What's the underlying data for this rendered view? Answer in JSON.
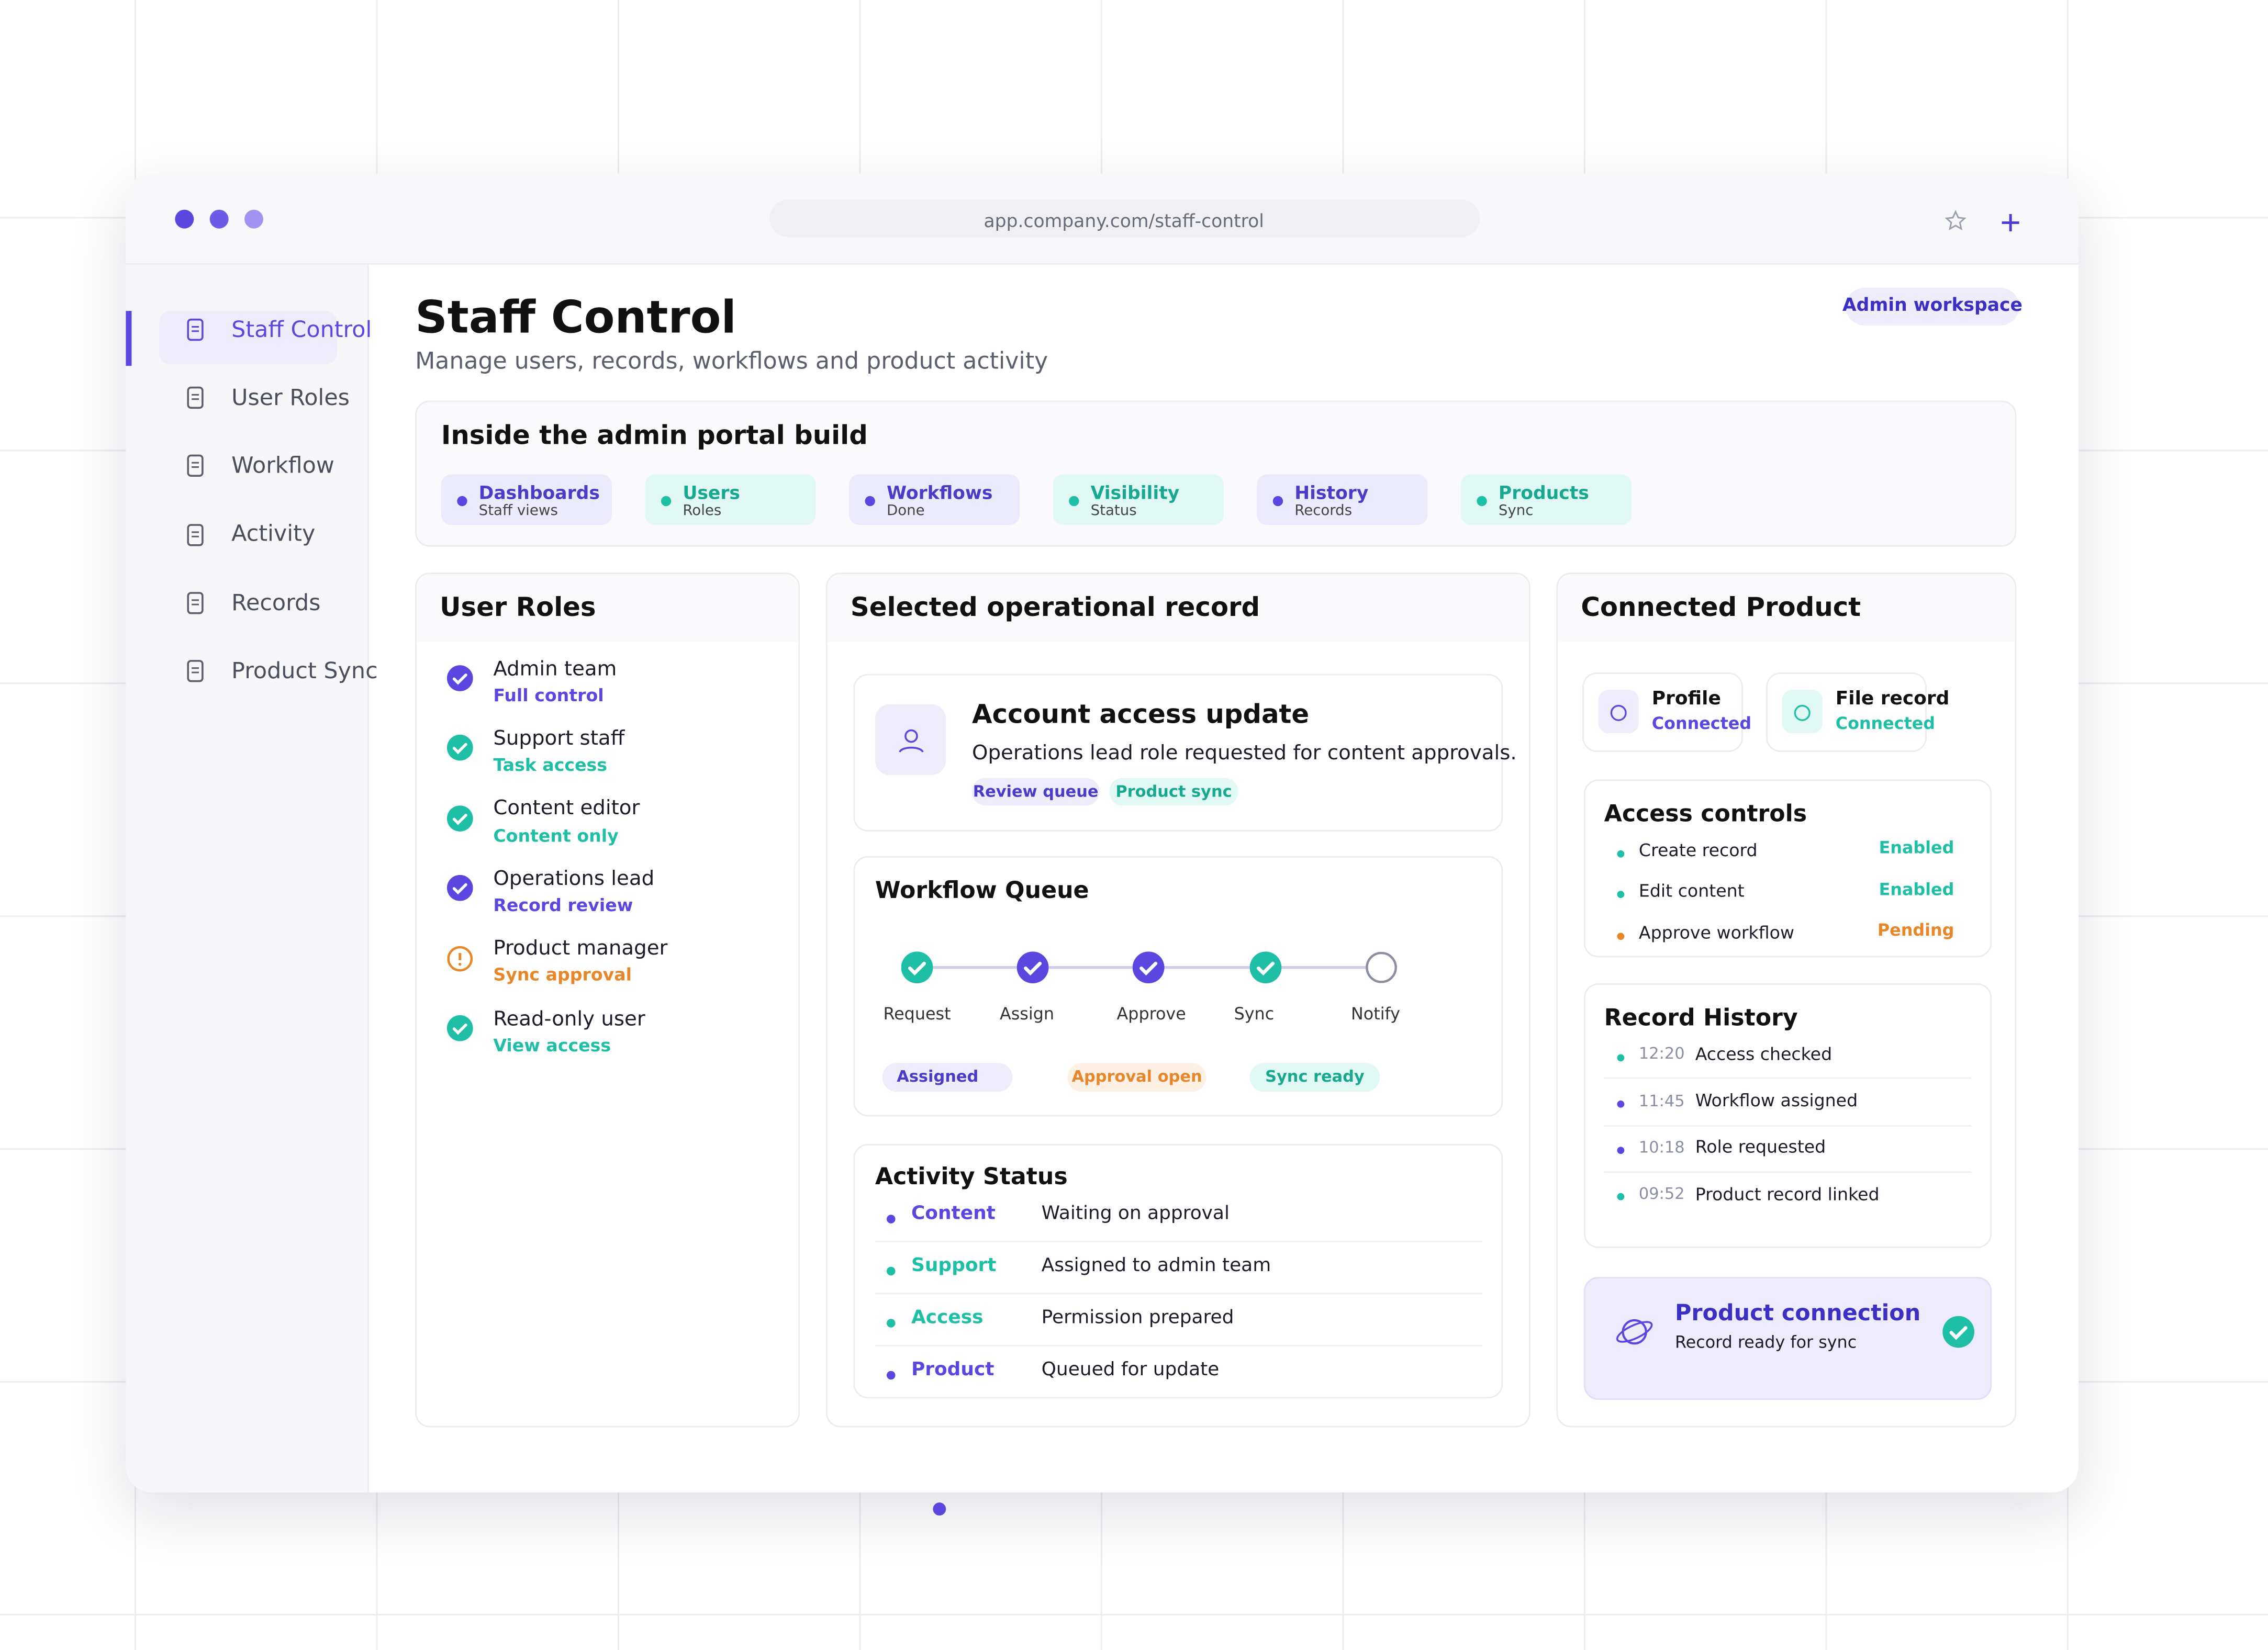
{
  "browser": {
    "url": "app.company.com/staff-control"
  },
  "sidebar": {
    "items": [
      "Staff Control",
      "User Roles",
      "Workflow",
      "Activity",
      "Records",
      "Product Sync"
    ]
  },
  "header": {
    "title": "Staff Control",
    "subtitle": "Manage users, records, workflows and product activity",
    "badge": "Admin workspace"
  },
  "build": {
    "title": "Inside the admin portal build",
    "chips": [
      {
        "label": "Dashboards",
        "sub": "Staff views"
      },
      {
        "label": "Users",
        "sub": "Roles"
      },
      {
        "label": "Workflows",
        "sub": "Done"
      },
      {
        "label": "Visibility",
        "sub": "Status"
      },
      {
        "label": "History",
        "sub": "Records"
      },
      {
        "label": "Products",
        "sub": "Sync"
      }
    ]
  },
  "roles": {
    "title": "User Roles",
    "items": [
      {
        "name": "Admin team",
        "access": "Full control"
      },
      {
        "name": "Support staff",
        "access": "Task access"
      },
      {
        "name": "Content editor",
        "access": "Content only"
      },
      {
        "name": "Operations lead",
        "access": "Record review"
      },
      {
        "name": "Product manager",
        "access": "Sync approval"
      },
      {
        "name": "Read-only user",
        "access": "View access"
      }
    ]
  },
  "record": {
    "title": "Selected operational record",
    "card": {
      "title": "Account access update",
      "text": "Operations lead role requested for content approvals.",
      "tags": [
        "Review queue",
        "Product sync"
      ]
    }
  },
  "workflow": {
    "title": "Workflow Queue",
    "steps": [
      "Request",
      "Assign",
      "Approve",
      "Sync",
      "Notify"
    ],
    "tags": [
      "Assigned",
      "Approval open",
      "Sync ready"
    ]
  },
  "activity": {
    "title": "Activity Status",
    "rows": [
      {
        "label": "Content",
        "text": "Waiting on approval"
      },
      {
        "label": "Support",
        "text": "Assigned to admin team"
      },
      {
        "label": "Access",
        "text": "Permission prepared"
      },
      {
        "label": "Product",
        "text": "Queued for update"
      }
    ]
  },
  "product": {
    "title": "Connected Product",
    "cards": [
      {
        "title": "Profile",
        "status": "Connected"
      },
      {
        "title": "File record",
        "status": "Connected"
      }
    ],
    "access": {
      "title": "Access controls",
      "rows": [
        {
          "label": "Create record",
          "status": "Enabled"
        },
        {
          "label": "Edit content",
          "status": "Enabled"
        },
        {
          "label": "Approve workflow",
          "status": "Pending"
        }
      ]
    },
    "history": {
      "title": "Record History",
      "rows": [
        {
          "time": "12:20",
          "text": "Access checked"
        },
        {
          "time": "11:45",
          "text": "Workflow assigned"
        },
        {
          "time": "10:18",
          "text": "Role requested"
        },
        {
          "time": "09:52",
          "text": "Product record linked"
        }
      ]
    },
    "connection": {
      "title": "Product connection",
      "text": "Record ready for sync"
    }
  }
}
